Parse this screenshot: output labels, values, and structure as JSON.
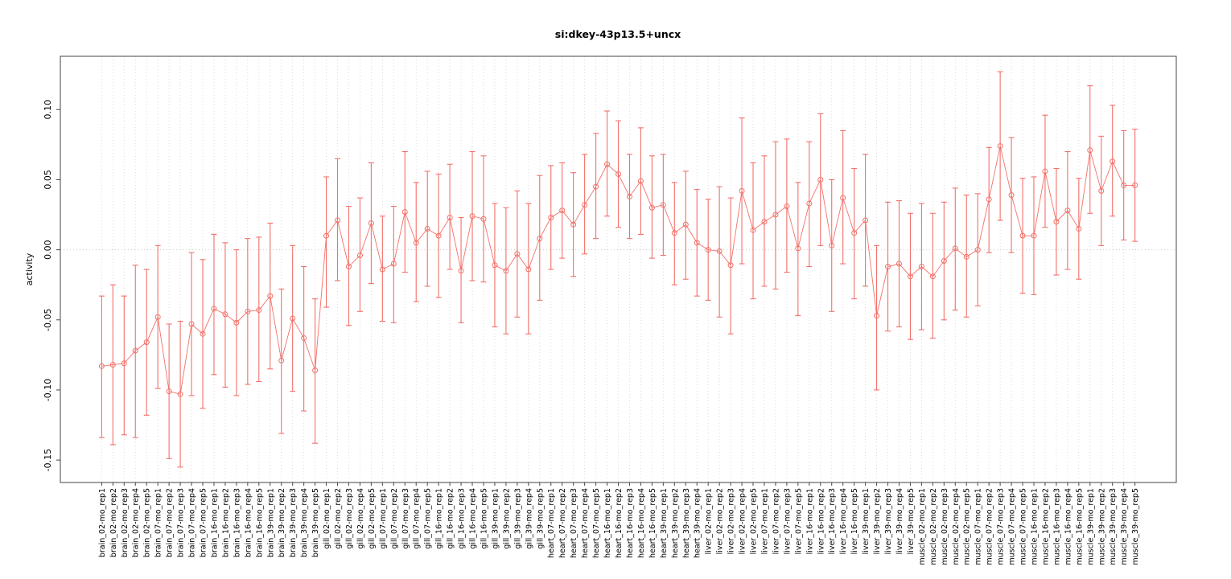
{
  "chart_data": {
    "type": "scatter",
    "title": "si:dkey-43p13.5+uncx",
    "xlabel": "",
    "ylabel": "activity",
    "ylim": [
      -0.166,
      0.138
    ],
    "yticks": [
      -0.15,
      -0.1,
      -0.05,
      0.0,
      0.05,
      0.1
    ],
    "ytick_labels": [
      "-0.15",
      "-0.10",
      "-0.05",
      "0.00",
      "0.05",
      "0.10"
    ],
    "grid": "dotted vertical line per category, dotted horizontal line at zero",
    "legend": "none",
    "point_style": "open circle with error bars, consecutive points connected by thin line",
    "colors": {
      "series": "#f2716a",
      "grid": "#d4d4d4",
      "zero_line": "#c9c9c9",
      "axis": "#444444"
    },
    "categories": [
      "brain_02-mo_rep1",
      "brain_02-mo_rep2",
      "brain_02-mo_rep3",
      "brain_02-mo_rep4",
      "brain_02-mo_rep5",
      "brain_07-mo_rep1",
      "brain_07-mo_rep2",
      "brain_07-mo_rep3",
      "brain_07-mo_rep4",
      "brain_07-mo_rep5",
      "brain_16-mo_rep1",
      "brain_16-mo_rep2",
      "brain_16-mo_rep3",
      "brain_16-mo_rep4",
      "brain_16-mo_rep5",
      "brain_39-mo_rep1",
      "brain_39-mo_rep2",
      "brain_39-mo_rep3",
      "brain_39-mo_rep4",
      "brain_39-mo_rep5",
      "gill_02-mo_rep1",
      "gill_02-mo_rep2",
      "gill_02-mo_rep3",
      "gill_02-mo_rep4",
      "gill_02-mo_rep5",
      "gill_07-mo_rep1",
      "gill_07-mo_rep2",
      "gill_07-mo_rep3",
      "gill_07-mo_rep4",
      "gill_07-mo_rep5",
      "gill_16-mo_rep1",
      "gill_16-mo_rep2",
      "gill_16-mo_rep3",
      "gill_16-mo_rep4",
      "gill_16-mo_rep5",
      "gill_39-mo_rep1",
      "gill_39-mo_rep2",
      "gill_39-mo_rep3",
      "gill_39-mo_rep4",
      "gill_39-mo_rep5",
      "heart_07-mo_rep1",
      "heart_07-mo_rep2",
      "heart_07-mo_rep3",
      "heart_07-mo_rep4",
      "heart_07-mo_rep5",
      "heart_16-mo_rep1",
      "heart_16-mo_rep2",
      "heart_16-mo_rep3",
      "heart_16-mo_rep4",
      "heart_16-mo_rep5",
      "heart_39-mo_rep1",
      "heart_39-mo_rep2",
      "heart_39-mo_rep3",
      "heart_39-mo_rep4",
      "liver_02-mo_rep1",
      "liver_02-mo_rep2",
      "liver_02-mo_rep3",
      "liver_02-mo_rep4",
      "liver_02-mo_rep5",
      "liver_07-mo_rep1",
      "liver_07-mo_rep2",
      "liver_07-mo_rep3",
      "liver_07-mo_rep5",
      "liver_16-mo_rep1",
      "liver_16-mo_rep2",
      "liver_16-mo_rep3",
      "liver_16-mo_rep4",
      "liver_16-mo_rep5",
      "liver_39-mo_rep1",
      "liver_39-mo_rep2",
      "liver_39-mo_rep3",
      "liver_39-mo_rep4",
      "liver_39-mo_rep5",
      "muscle_02-mo_rep1",
      "muscle_02-mo_rep2",
      "muscle_02-mo_rep3",
      "muscle_02-mo_rep4",
      "muscle_02-mo_rep5",
      "muscle_07-mo_rep1",
      "muscle_07-mo_rep2",
      "muscle_07-mo_rep3",
      "muscle_07-mo_rep4",
      "muscle_07-mo_rep5",
      "muscle_16-mo_rep1",
      "muscle_16-mo_rep2",
      "muscle_16-mo_rep3",
      "muscle_16-mo_rep4",
      "muscle_16-mo_rep5",
      "muscle_39-mo_rep1",
      "muscle_39-mo_rep2",
      "muscle_39-mo_rep3",
      "muscle_39-mo_rep4",
      "muscle_39-mo_rep5"
    ],
    "series": [
      {
        "name": "activity",
        "values": [
          -0.083,
          -0.082,
          -0.081,
          -0.072,
          -0.066,
          -0.048,
          -0.101,
          -0.103,
          -0.053,
          -0.06,
          -0.042,
          -0.046,
          -0.052,
          -0.044,
          -0.043,
          -0.033,
          -0.079,
          -0.049,
          -0.063,
          -0.086,
          0.01,
          0.021,
          -0.012,
          -0.004,
          0.019,
          -0.014,
          -0.01,
          0.027,
          0.005,
          0.015,
          0.01,
          0.023,
          -0.015,
          0.024,
          0.022,
          -0.011,
          -0.015,
          -0.003,
          -0.014,
          0.008,
          0.023,
          0.028,
          0.018,
          0.032,
          0.045,
          0.061,
          0.054,
          0.038,
          0.049,
          0.03,
          0.032,
          0.012,
          0.018,
          0.005,
          0.0,
          -0.001,
          -0.011,
          0.042,
          0.014,
          0.02,
          0.025,
          0.031,
          0.001,
          0.033,
          0.05,
          0.003,
          0.037,
          0.012,
          0.021,
          -0.047,
          -0.012,
          -0.01,
          -0.019,
          -0.012,
          -0.019,
          -0.008,
          0.001,
          -0.005,
          0.0,
          0.036,
          0.074,
          0.039,
          0.01,
          0.01,
          0.056,
          0.02,
          0.028,
          0.015,
          0.071,
          0.042,
          0.063,
          0.046,
          0.046
        ],
        "lo": [
          -0.134,
          -0.139,
          -0.132,
          -0.134,
          -0.118,
          -0.099,
          -0.149,
          -0.155,
          -0.104,
          -0.113,
          -0.089,
          -0.098,
          -0.104,
          -0.096,
          -0.094,
          -0.085,
          -0.131,
          -0.101,
          -0.115,
          -0.138,
          -0.041,
          -0.022,
          -0.054,
          -0.044,
          -0.024,
          -0.051,
          -0.052,
          -0.016,
          -0.037,
          -0.026,
          -0.034,
          -0.014,
          -0.052,
          -0.022,
          -0.023,
          -0.055,
          -0.06,
          -0.048,
          -0.06,
          -0.036,
          -0.014,
          -0.006,
          -0.019,
          -0.003,
          0.008,
          0.024,
          0.016,
          0.008,
          0.011,
          -0.006,
          -0.004,
          -0.025,
          -0.021,
          -0.033,
          -0.036,
          -0.048,
          -0.06,
          -0.01,
          -0.035,
          -0.026,
          -0.028,
          -0.016,
          -0.047,
          -0.012,
          0.003,
          -0.044,
          -0.01,
          -0.035,
          -0.026,
          -0.1,
          -0.058,
          -0.055,
          -0.064,
          -0.057,
          -0.063,
          -0.05,
          -0.043,
          -0.048,
          -0.04,
          -0.002,
          0.021,
          -0.002,
          -0.031,
          -0.032,
          0.016,
          -0.018,
          -0.014,
          -0.021,
          0.026,
          0.003,
          0.024,
          0.007,
          0.006
        ],
        "hi": [
          -0.033,
          -0.025,
          -0.033,
          -0.011,
          -0.014,
          0.003,
          -0.053,
          -0.051,
          -0.002,
          -0.007,
          0.011,
          0.005,
          0.0,
          0.008,
          0.009,
          0.019,
          -0.028,
          0.003,
          -0.012,
          -0.035,
          0.052,
          0.065,
          0.031,
          0.037,
          0.062,
          0.024,
          0.031,
          0.07,
          0.048,
          0.056,
          0.054,
          0.061,
          0.023,
          0.07,
          0.067,
          0.033,
          0.03,
          0.042,
          0.033,
          0.053,
          0.06,
          0.062,
          0.055,
          0.068,
          0.083,
          0.099,
          0.092,
          0.068,
          0.087,
          0.067,
          0.068,
          0.048,
          0.056,
          0.043,
          0.036,
          0.045,
          0.037,
          0.094,
          0.062,
          0.067,
          0.077,
          0.079,
          0.048,
          0.077,
          0.097,
          0.05,
          0.085,
          0.058,
          0.068,
          0.003,
          0.034,
          0.035,
          0.026,
          0.033,
          0.026,
          0.034,
          0.044,
          0.039,
          0.04,
          0.073,
          0.127,
          0.08,
          0.051,
          0.052,
          0.096,
          0.058,
          0.07,
          0.051,
          0.117,
          0.081,
          0.103,
          0.085,
          0.086
        ]
      }
    ]
  }
}
